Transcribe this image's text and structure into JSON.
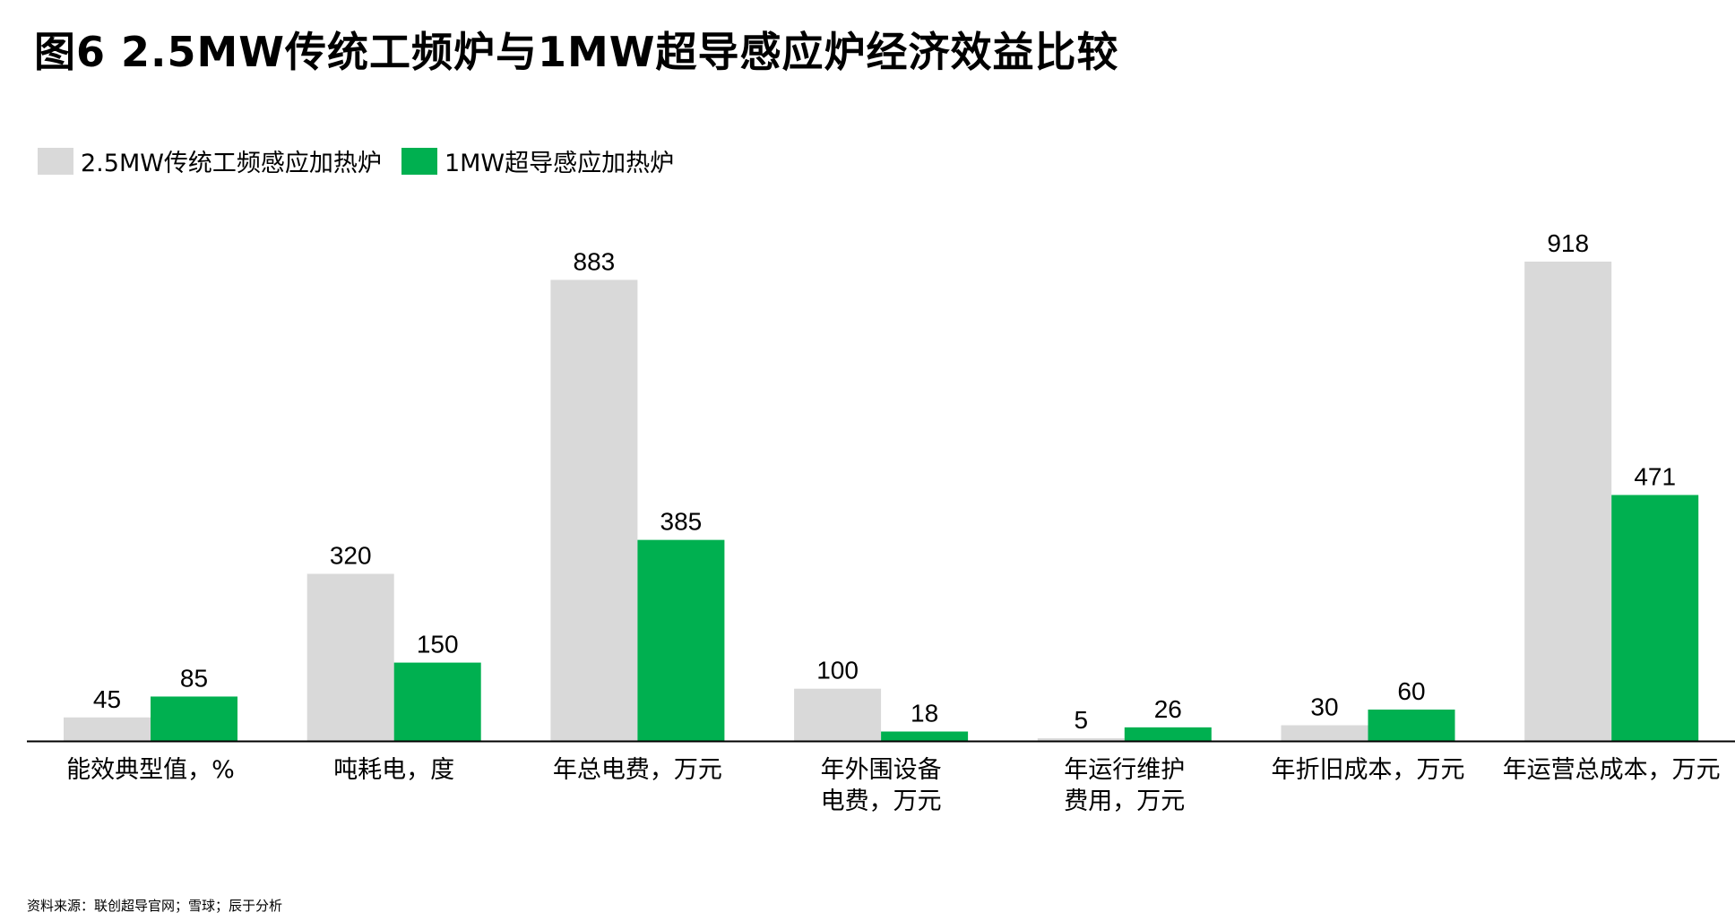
{
  "title": "图6  2.5MW传统工频炉与1MW超导感应炉经济效益比较",
  "source": "资料来源：联创超导官网；雪球；辰于分析",
  "chart_data": {
    "type": "bar",
    "title": "图6  2.5MW传统工频炉与1MW超导感应炉经济效益比较",
    "xlabel": "",
    "ylabel": "",
    "legend_position": "top-left",
    "grid": false,
    "categories": [
      [
        "能效典型值，%"
      ],
      [
        "吨耗电，度"
      ],
      [
        "年总电费，万元"
      ],
      [
        "年外围设备",
        "电费，万元"
      ],
      [
        "年运行维护",
        "费用，万元"
      ],
      [
        "年折旧成本，万元"
      ],
      [
        "年运营总成本，万元"
      ]
    ],
    "series": [
      {
        "name": "2.5MW传统工频感应加热炉",
        "color": "#d9d9d9",
        "values": [
          45,
          320,
          883,
          100,
          5,
          30,
          918
        ]
      },
      {
        "name": "1MW超导感应加热炉",
        "color": "#00b050",
        "values": [
          85,
          150,
          385,
          18,
          26,
          60,
          471
        ]
      }
    ],
    "ylim": [
      0,
      918
    ]
  }
}
